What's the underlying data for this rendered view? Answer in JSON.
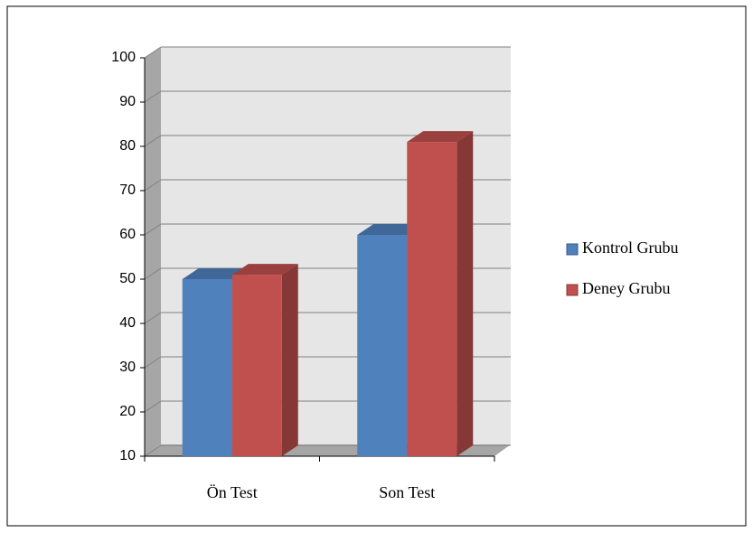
{
  "chart_data": {
    "type": "bar3d",
    "categories": [
      "Ön Test",
      "Son Test"
    ],
    "series": [
      {
        "name": "Kontrol Grubu",
        "color": "#4f81bd",
        "values": [
          50,
          60
        ]
      },
      {
        "name": "Deney Grubu",
        "color": "#c0504d",
        "values": [
          51,
          81
        ]
      }
    ],
    "ylim": [
      10,
      100
    ],
    "yticks": [
      10,
      20,
      30,
      40,
      50,
      60,
      70,
      80,
      90,
      100
    ],
    "grid": true,
    "legend": "right"
  }
}
